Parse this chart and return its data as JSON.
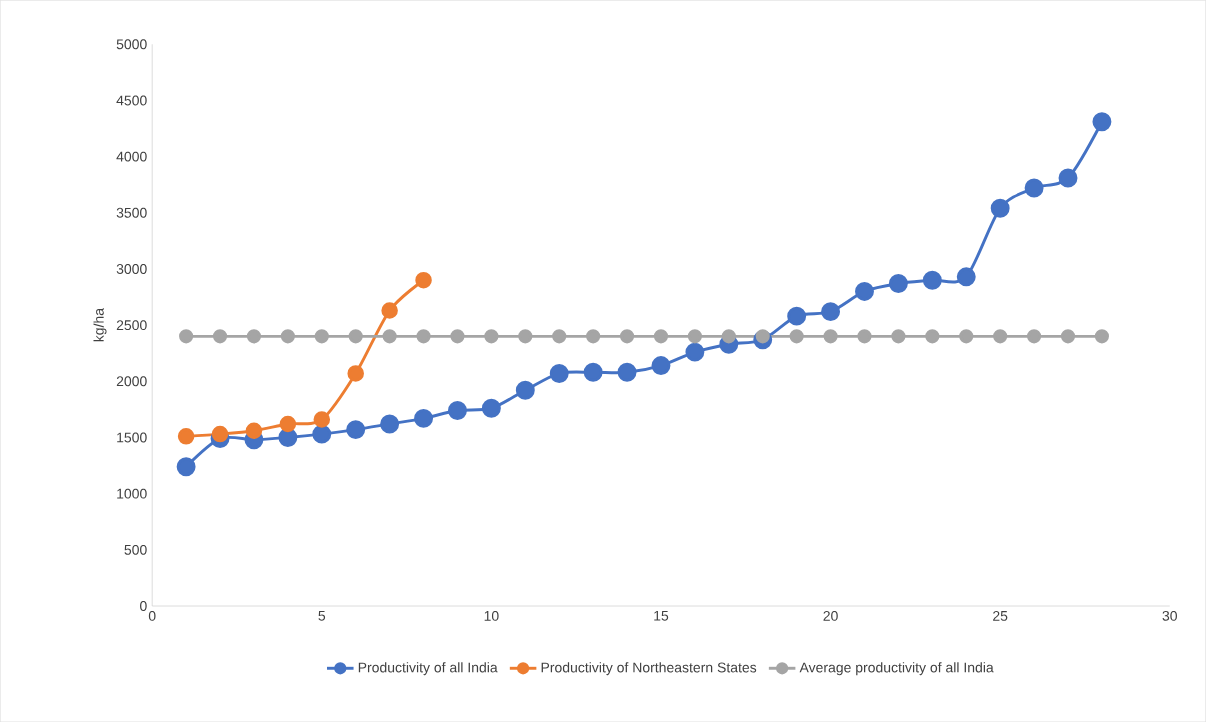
{
  "chart_data": {
    "type": "line",
    "ylabel": "kg/ha",
    "xlim": [
      0,
      30
    ],
    "ylim": [
      0,
      5000
    ],
    "xticks": [
      0,
      5,
      10,
      15,
      20,
      25,
      30
    ],
    "yticks": [
      0,
      500,
      1000,
      1500,
      2000,
      2500,
      3000,
      3500,
      4000,
      4500,
      5000
    ],
    "legend": "bottom",
    "marker": "circle",
    "grid": false,
    "series": [
      {
        "name": "Productivity of all India",
        "color": "#4472c4",
        "x": [
          1,
          2,
          3,
          4,
          5,
          6,
          7,
          8,
          9,
          10,
          11,
          12,
          13,
          14,
          15,
          16,
          17,
          18,
          19,
          20,
          21,
          22,
          23,
          24,
          25,
          26,
          27,
          28
        ],
        "values": [
          1240,
          1490,
          1480,
          1500,
          1530,
          1570,
          1620,
          1670,
          1740,
          1760,
          1920,
          2070,
          2080,
          2080,
          2140,
          2260,
          2330,
          2370,
          2580,
          2620,
          2800,
          2870,
          2900,
          2930,
          3540,
          3720,
          3810,
          4310
        ]
      },
      {
        "name": "Productivity of Northeastern States",
        "color": "#ed7d31",
        "x": [
          1,
          2,
          3,
          4,
          5,
          6,
          7,
          8
        ],
        "values": [
          1510,
          1530,
          1560,
          1620,
          1660,
          2070,
          2630,
          2900
        ]
      },
      {
        "name": "Average productivity of all India",
        "color": "#a5a5a5",
        "x": [
          1,
          2,
          3,
          4,
          5,
          6,
          7,
          8,
          9,
          10,
          11,
          12,
          13,
          14,
          15,
          16,
          17,
          18,
          19,
          20,
          21,
          22,
          23,
          24,
          25,
          26,
          27,
          28
        ],
        "values": [
          2400,
          2400,
          2400,
          2400,
          2400,
          2400,
          2400,
          2400,
          2400,
          2400,
          2400,
          2400,
          2400,
          2400,
          2400,
          2400,
          2400,
          2400,
          2400,
          2400,
          2400,
          2400,
          2400,
          2400,
          2400,
          2400,
          2400,
          2400
        ]
      }
    ]
  }
}
